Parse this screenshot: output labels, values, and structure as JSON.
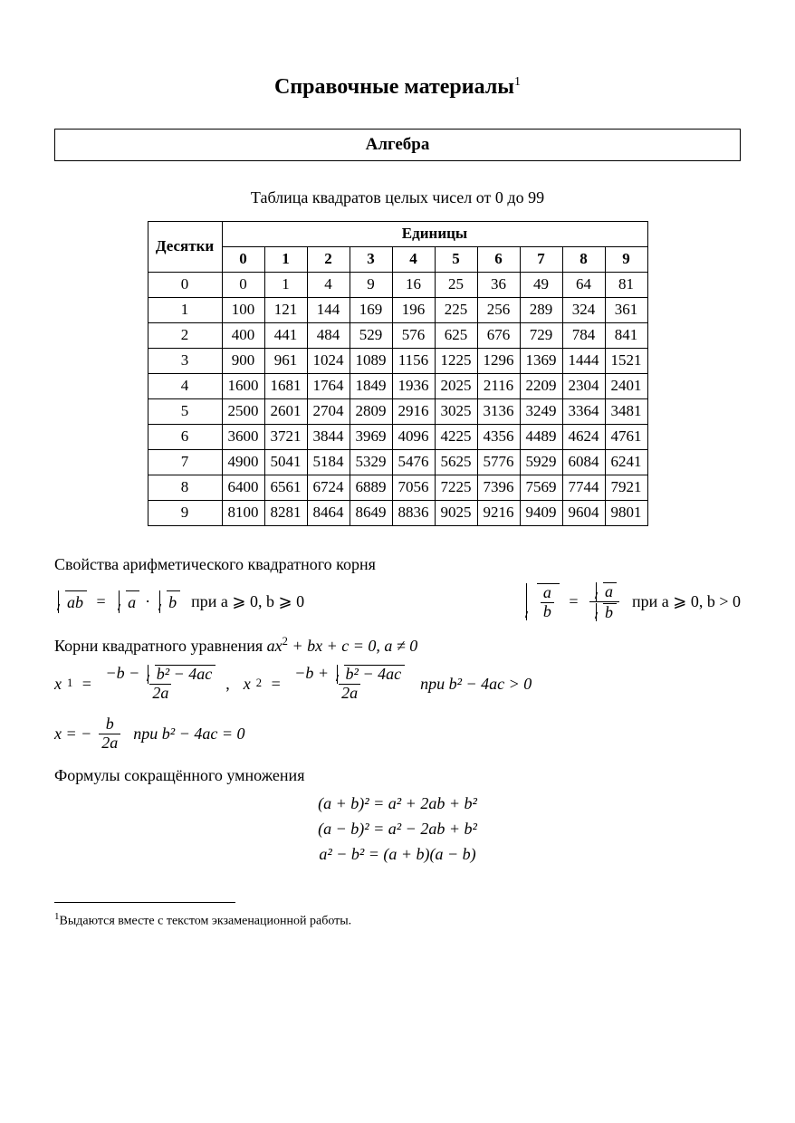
{
  "title": "Справочные материалы",
  "title_footnote_mark": "1",
  "section_heading": "Алгебра",
  "squares_table": {
    "caption": "Таблица квадратов целых чисел от 0 до 99",
    "tens_header": "Десятки",
    "units_header": "Единицы",
    "unit_labels": [
      "0",
      "1",
      "2",
      "3",
      "4",
      "5",
      "6",
      "7",
      "8",
      "9"
    ],
    "tens_labels": [
      "0",
      "1",
      "2",
      "3",
      "4",
      "5",
      "6",
      "7",
      "8",
      "9"
    ],
    "rows": [
      [
        "0",
        "1",
        "4",
        "9",
        "16",
        "25",
        "36",
        "49",
        "64",
        "81"
      ],
      [
        "100",
        "121",
        "144",
        "169",
        "196",
        "225",
        "256",
        "289",
        "324",
        "361"
      ],
      [
        "400",
        "441",
        "484",
        "529",
        "576",
        "625",
        "676",
        "729",
        "784",
        "841"
      ],
      [
        "900",
        "961",
        "1024",
        "1089",
        "1156",
        "1225",
        "1296",
        "1369",
        "1444",
        "1521"
      ],
      [
        "1600",
        "1681",
        "1764",
        "1849",
        "1936",
        "2025",
        "2116",
        "2209",
        "2304",
        "2401"
      ],
      [
        "2500",
        "2601",
        "2704",
        "2809",
        "2916",
        "3025",
        "3136",
        "3249",
        "3364",
        "3481"
      ],
      [
        "3600",
        "3721",
        "3844",
        "3969",
        "4096",
        "4225",
        "4356",
        "4489",
        "4624",
        "4761"
      ],
      [
        "4900",
        "5041",
        "5184",
        "5329",
        "5476",
        "5625",
        "5776",
        "5929",
        "6084",
        "6241"
      ],
      [
        "6400",
        "6561",
        "6724",
        "6889",
        "7056",
        "7225",
        "7396",
        "7569",
        "7744",
        "7921"
      ],
      [
        "8100",
        "8281",
        "8464",
        "8649",
        "8836",
        "9025",
        "9216",
        "9409",
        "9604",
        "9801"
      ]
    ],
    "border_color": "#000000",
    "background_color": "#ffffff",
    "fontsize": 17
  },
  "sqrt_props": {
    "heading": "Свойства арифметического квадратного корня",
    "left": {
      "lhs_inner": "ab",
      "rhs_a": "a",
      "rhs_b": "b",
      "cond": "при  a ⩾ 0, b ⩾ 0"
    },
    "right": {
      "frac_num": "a",
      "frac_den": "b",
      "rhs_num_inner": "a",
      "rhs_den_inner": "b",
      "cond": "при  a ⩾ 0, b > 0"
    }
  },
  "quadratic": {
    "heading_prefix": "Корни квадратного уравнения ",
    "eq": "ax",
    "eq_tail": " + bx + c = 0,  a ≠ 0",
    "x1_label": "x",
    "x1_sub": "1",
    "x2_label": "x",
    "x2_sub": "2",
    "num1": "−b − ",
    "disc_inner": "b² − 4ac",
    "num2": "−b + ",
    "den": "2a",
    "cond_pos": "при  b² − 4ac > 0",
    "single_root_lhs": "x = −",
    "single_root_num": "b",
    "single_root_den": "2a",
    "cond_zero": "при  b² − 4ac = 0"
  },
  "short_mult": {
    "heading": "Формулы сокращённого умножения",
    "f1": "(a + b)² = a² + 2ab + b²",
    "f2": "(a − b)² = a² − 2ab + b²",
    "f3": "a² − b² = (a + b)(a − b)"
  },
  "footnote": {
    "mark": "1",
    "text": "Выдаются вместе с текстом экзаменационной работы."
  },
  "colors": {
    "text": "#000000",
    "background": "#ffffff",
    "rule": "#000000"
  },
  "typography": {
    "title_fontsize_pt": 18,
    "body_fontsize_pt": 13,
    "footnote_fontsize_pt": 10,
    "font_family": "Times New Roman serif"
  }
}
